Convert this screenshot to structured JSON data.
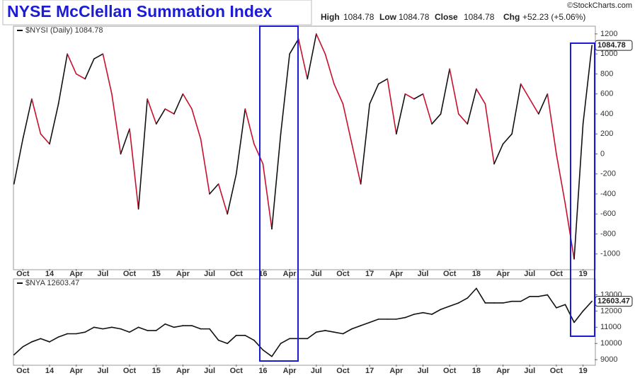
{
  "header": {
    "title": "NYSE McClellan Summation Index",
    "stats": [
      {
        "label": "High",
        "value": "1084.78"
      },
      {
        "label": "Low",
        "value": "1084.78"
      },
      {
        "label": "Close",
        "value": "1084.78"
      },
      {
        "label": "Chg",
        "value": "+52.23 (+5.06%)"
      }
    ],
    "credit": "©StockCharts.com"
  },
  "chart_data": [
    {
      "type": "line",
      "up_color": "#111111",
      "down_color": "#c8102e",
      "x": [
        "2013-09",
        "2013-10",
        "2013-11",
        "2013-12",
        "2014-01",
        "2014-02",
        "2014-03",
        "2014-04",
        "2014-05",
        "2014-06",
        "2014-07",
        "2014-08",
        "2014-09",
        "2014-10",
        "2014-11",
        "2014-12",
        "2015-01",
        "2015-02",
        "2015-03",
        "2015-04",
        "2015-05",
        "2015-06",
        "2015-07",
        "2015-08",
        "2015-09",
        "2015-10",
        "2015-11",
        "2015-12",
        "2016-01",
        "2016-02",
        "2016-03",
        "2016-04",
        "2016-05",
        "2016-06",
        "2016-07",
        "2016-08",
        "2016-09",
        "2016-10",
        "2016-11",
        "2016-12",
        "2017-01",
        "2017-02",
        "2017-03",
        "2017-04",
        "2017-05",
        "2017-06",
        "2017-07",
        "2017-08",
        "2017-09",
        "2017-10",
        "2017-11",
        "2017-12",
        "2018-01",
        "2018-02",
        "2018-03",
        "2018-04",
        "2018-05",
        "2018-06",
        "2018-07",
        "2018-08",
        "2018-09",
        "2018-10",
        "2018-11",
        "2018-12",
        "2019-01",
        "2019-02"
      ],
      "series": [
        {
          "name": "$NYSI (Daily) 1084.78",
          "values": [
            -300,
            150,
            550,
            200,
            100,
            500,
            1000,
            800,
            750,
            950,
            1000,
            600,
            0,
            250,
            -550,
            550,
            300,
            450,
            400,
            600,
            450,
            150,
            -400,
            -300,
            -600,
            -200,
            450,
            100,
            -100,
            -750,
            200,
            1000,
            1150,
            750,
            1200,
            1000,
            700,
            500,
            100,
            -300,
            500,
            700,
            750,
            200,
            600,
            550,
            600,
            300,
            400,
            850,
            400,
            300,
            650,
            500,
            -100,
            100,
            200,
            700,
            550,
            400,
            600,
            0,
            -500,
            -1050,
            300,
            1084.78
          ]
        }
      ],
      "ylim": [
        -1150,
        1270
      ],
      "yticks": [
        -1000,
        -800,
        -600,
        -400,
        -200,
        0,
        200,
        400,
        600,
        800,
        1000,
        1200
      ],
      "xticks": [
        {
          "value": "2013-10",
          "label": "Oct"
        },
        {
          "value": "2014-01",
          "label": "14"
        },
        {
          "value": "2014-04",
          "label": "Apr"
        },
        {
          "value": "2014-07",
          "label": "Jul"
        },
        {
          "value": "2014-10",
          "label": "Oct"
        },
        {
          "value": "2015-01",
          "label": "15"
        },
        {
          "value": "2015-04",
          "label": "Apr"
        },
        {
          "value": "2015-07",
          "label": "Jul"
        },
        {
          "value": "2015-10",
          "label": "Oct"
        },
        {
          "value": "2016-01",
          "label": "16"
        },
        {
          "value": "2016-04",
          "label": "Apr"
        },
        {
          "value": "2016-07",
          "label": "Jul"
        },
        {
          "value": "2016-10",
          "label": "Oct"
        },
        {
          "value": "2017-01",
          "label": "17"
        },
        {
          "value": "2017-04",
          "label": "Apr"
        },
        {
          "value": "2017-07",
          "label": "Jul"
        },
        {
          "value": "2017-10",
          "label": "Oct"
        },
        {
          "value": "2018-01",
          "label": "18"
        },
        {
          "value": "2018-04",
          "label": "Apr"
        },
        {
          "value": "2018-07",
          "label": "Jul"
        },
        {
          "value": "2018-10",
          "label": "Oct"
        },
        {
          "value": "2019-01",
          "label": "19"
        }
      ]
    },
    {
      "type": "line",
      "color": "#111111",
      "x": [
        "2013-09",
        "2013-10",
        "2013-11",
        "2013-12",
        "2014-01",
        "2014-02",
        "2014-03",
        "2014-04",
        "2014-05",
        "2014-06",
        "2014-07",
        "2014-08",
        "2014-09",
        "2014-10",
        "2014-11",
        "2014-12",
        "2015-01",
        "2015-02",
        "2015-03",
        "2015-04",
        "2015-05",
        "2015-06",
        "2015-07",
        "2015-08",
        "2015-09",
        "2015-10",
        "2015-11",
        "2015-12",
        "2016-01",
        "2016-02",
        "2016-03",
        "2016-04",
        "2016-05",
        "2016-06",
        "2016-07",
        "2016-08",
        "2016-09",
        "2016-10",
        "2016-11",
        "2016-12",
        "2017-01",
        "2017-02",
        "2017-03",
        "2017-04",
        "2017-05",
        "2017-06",
        "2017-07",
        "2017-08",
        "2017-09",
        "2017-10",
        "2017-11",
        "2017-12",
        "2018-01",
        "2018-02",
        "2018-03",
        "2018-04",
        "2018-05",
        "2018-06",
        "2018-07",
        "2018-08",
        "2018-09",
        "2018-10",
        "2018-11",
        "2018-12",
        "2019-01",
        "2019-02"
      ],
      "series": [
        {
          "name": "$NYA 12603.47",
          "values": [
            9300,
            9800,
            10100,
            10300,
            10100,
            10400,
            10600,
            10600,
            10700,
            11000,
            10900,
            11000,
            10900,
            10700,
            11000,
            10800,
            10800,
            11200,
            11000,
            11100,
            11100,
            10900,
            10900,
            10200,
            10000,
            10500,
            10500,
            10200,
            9600,
            9200,
            10000,
            10300,
            10300,
            10300,
            10700,
            10800,
            10700,
            10600,
            10900,
            11100,
            11300,
            11500,
            11500,
            11500,
            11600,
            11800,
            11900,
            11800,
            12100,
            12300,
            12500,
            12800,
            13400,
            12500,
            12500,
            12500,
            12600,
            12600,
            12900,
            12900,
            13000,
            12200,
            12400,
            11300,
            12000,
            12603.47
          ]
        }
      ],
      "ylim": [
        8700,
        13940
      ],
      "yticks": [
        9000,
        10000,
        11000,
        12000,
        13000
      ],
      "xticks": [
        {
          "value": "2013-10",
          "label": "Oct"
        },
        {
          "value": "2014-01",
          "label": "14"
        },
        {
          "value": "2014-04",
          "label": "Apr"
        },
        {
          "value": "2014-07",
          "label": "Jul"
        },
        {
          "value": "2014-10",
          "label": "Oct"
        },
        {
          "value": "2015-01",
          "label": "15"
        },
        {
          "value": "2015-04",
          "label": "Apr"
        },
        {
          "value": "2015-07",
          "label": "Jul"
        },
        {
          "value": "2015-10",
          "label": "Oct"
        },
        {
          "value": "2016-01",
          "label": "16"
        },
        {
          "value": "2016-04",
          "label": "Apr"
        },
        {
          "value": "2016-07",
          "label": "Jul"
        },
        {
          "value": "2016-10",
          "label": "Oct"
        },
        {
          "value": "2017-01",
          "label": "17"
        },
        {
          "value": "2017-04",
          "label": "Apr"
        },
        {
          "value": "2017-07",
          "label": "Jul"
        },
        {
          "value": "2017-10",
          "label": "Oct"
        },
        {
          "value": "2018-01",
          "label": "18"
        },
        {
          "value": "2018-04",
          "label": "Apr"
        },
        {
          "value": "2018-07",
          "label": "Jul"
        },
        {
          "value": "2018-10",
          "label": "Oct"
        },
        {
          "value": "2019-01",
          "label": "19"
        }
      ]
    }
  ]
}
